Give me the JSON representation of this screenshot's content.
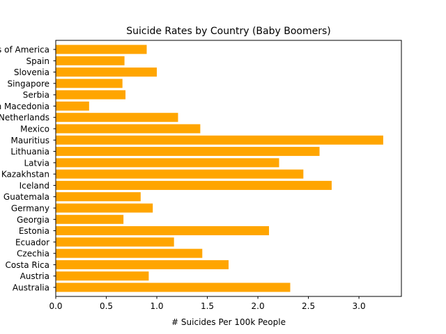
{
  "chart_data": {
    "type": "bar",
    "orientation": "horizontal",
    "title": "Suicide Rates by Country (Baby Boomers)",
    "xlabel": "# Suicides Per 100k People",
    "ylabel": "",
    "xlim": [
      0,
      3.42
    ],
    "x_ticks": [
      0.0,
      0.5,
      1.0,
      1.5,
      2.0,
      2.5,
      3.0
    ],
    "x_tick_labels": [
      "0.0",
      "0.5",
      "1.0",
      "1.5",
      "2.0",
      "2.5",
      "3.0"
    ],
    "grid": false,
    "bar_color": "#ffa500",
    "categories": [
      "Australia",
      "Austria",
      "Costa Rica",
      "Czechia",
      "Ecuador",
      "Estonia",
      "Georgia",
      "Germany",
      "Guatemala",
      "Iceland",
      "Kazakhstan",
      "Latvia",
      "Lithuania",
      "Mauritius",
      "Mexico",
      "Netherlands",
      "North Macedonia",
      "Serbia",
      "Singapore",
      "Slovenia",
      "Spain",
      "United States of America"
    ],
    "values": [
      2.32,
      0.92,
      1.71,
      1.45,
      1.17,
      2.11,
      0.67,
      0.96,
      0.84,
      2.73,
      2.45,
      2.21,
      2.61,
      3.24,
      1.43,
      1.21,
      0.33,
      0.69,
      0.66,
      1.0,
      0.68,
      0.9
    ]
  }
}
